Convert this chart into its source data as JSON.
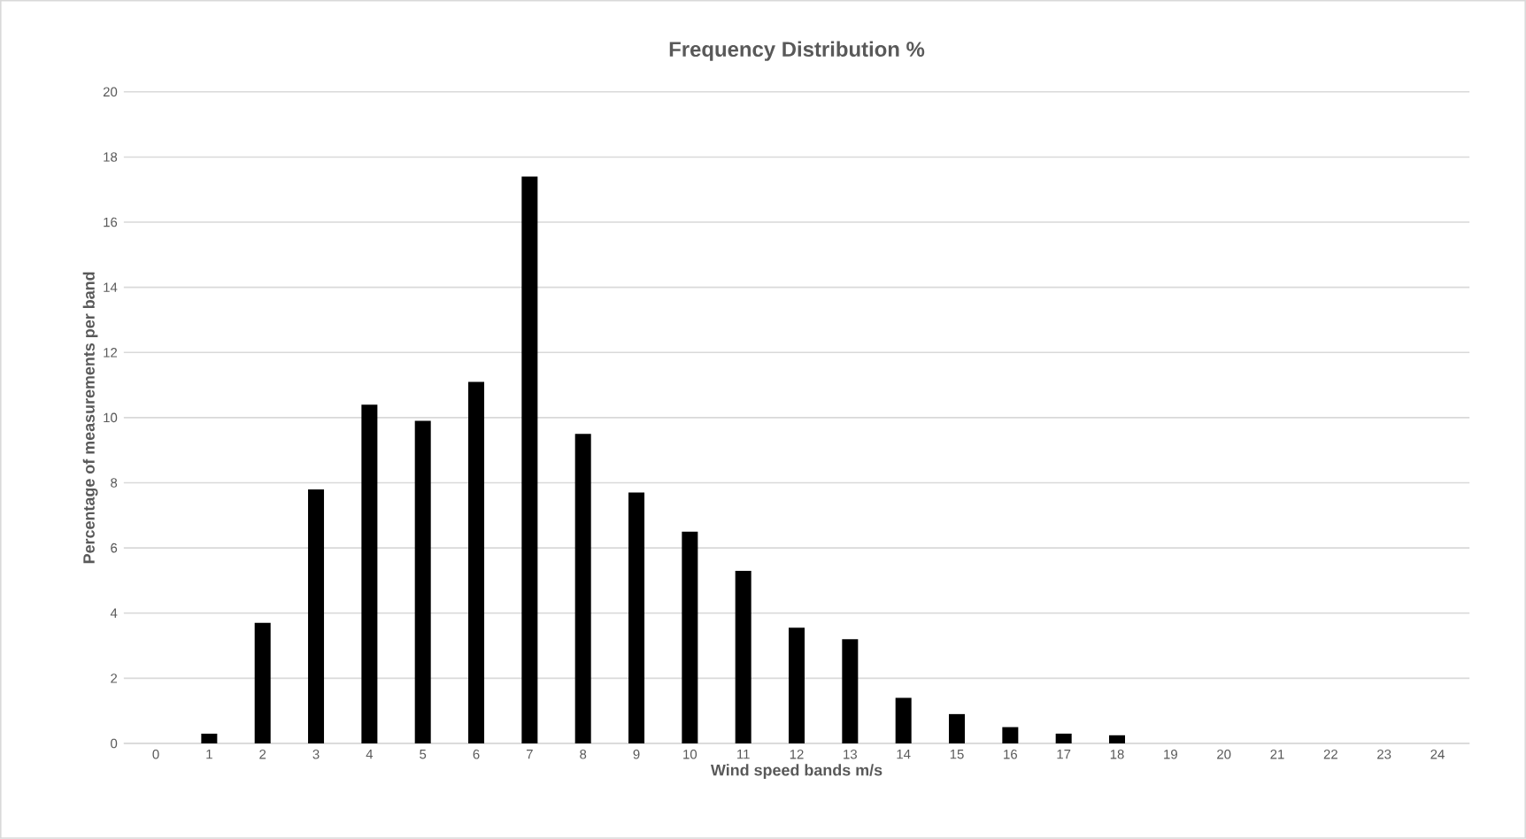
{
  "chart_data": {
    "type": "bar",
    "title": "Frequency Distribution %",
    "xlabel": "Wind speed bands m/s",
    "ylabel": "Percentage of measurements per band",
    "categories": [
      "0",
      "1",
      "2",
      "3",
      "4",
      "5",
      "6",
      "7",
      "8",
      "9",
      "10",
      "11",
      "12",
      "13",
      "14",
      "15",
      "16",
      "17",
      "18",
      "19",
      "20",
      "21",
      "22",
      "23",
      "24"
    ],
    "values": [
      0,
      0.3,
      3.7,
      7.8,
      10.4,
      9.9,
      11.1,
      17.4,
      9.5,
      7.7,
      6.5,
      5.3,
      3.55,
      3.2,
      1.4,
      0.9,
      0.5,
      0.3,
      0.25,
      0,
      0,
      0,
      0,
      0,
      0
    ],
    "color": "#000000",
    "ylim": [
      0,
      20
    ],
    "yticks": [
      0,
      2,
      4,
      6,
      8,
      10,
      12,
      14,
      16,
      18,
      20
    ],
    "grid": "y"
  }
}
